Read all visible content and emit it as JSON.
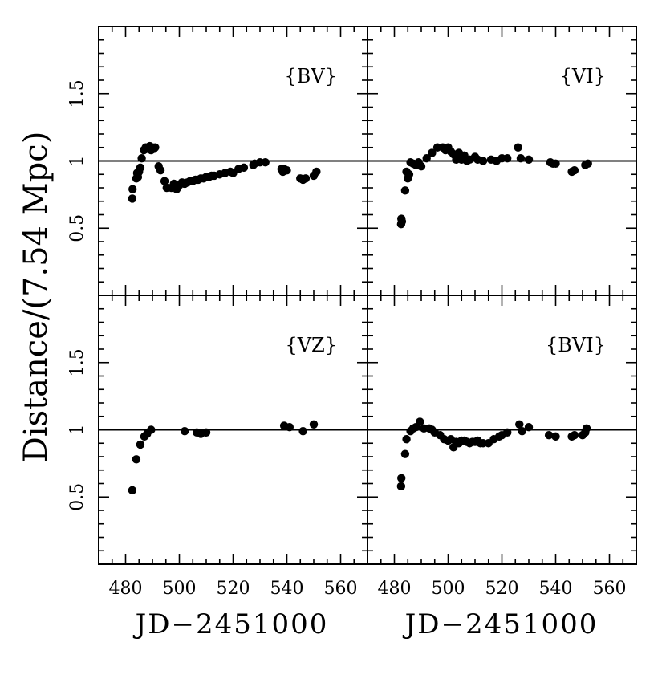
{
  "figure": {
    "ylabel": "Distance/(7.54 Mpc)",
    "xlabel": "JD−2451000"
  },
  "chart_data": [
    {
      "type": "scatter",
      "label": "{BV}",
      "xlim": [
        470,
        570
      ],
      "ylim": [
        0,
        2
      ],
      "xticks": [
        "480",
        "500",
        "520",
        "540",
        "560"
      ],
      "yticks": [
        "0.5",
        "1",
        "1.5"
      ],
      "reference_line": 1,
      "x": [
        482.5,
        482.6,
        484,
        484.3,
        484.6,
        485,
        485.5,
        486,
        486.8,
        487.5,
        488,
        488.5,
        489,
        489.5,
        490,
        490.5,
        491,
        492.3,
        493,
        494.5,
        495.3,
        497,
        498,
        499,
        500,
        501,
        502,
        503,
        504,
        505,
        506,
        507,
        508,
        509,
        510,
        511,
        512,
        513,
        515,
        517,
        519,
        520,
        522,
        524,
        527.5,
        528,
        530,
        532,
        538,
        538.5,
        539,
        540,
        545,
        546,
        547,
        550,
        551
      ],
      "y": [
        0.72,
        0.79,
        0.87,
        0.91,
        0.88,
        0.92,
        0.95,
        1.02,
        1.08,
        1.1,
        1.09,
        1.1,
        1.11,
        1.08,
        1.1,
        1.09,
        1.1,
        0.96,
        0.93,
        0.85,
        0.8,
        0.8,
        0.83,
        0.79,
        0.82,
        0.84,
        0.83,
        0.84,
        0.85,
        0.85,
        0.86,
        0.86,
        0.87,
        0.87,
        0.88,
        0.88,
        0.89,
        0.89,
        0.9,
        0.91,
        0.92,
        0.91,
        0.94,
        0.95,
        0.97,
        0.98,
        0.99,
        0.99,
        0.94,
        0.92,
        0.94,
        0.93,
        0.87,
        0.86,
        0.87,
        0.89,
        0.92
      ]
    },
    {
      "type": "scatter",
      "label": "{VI}",
      "xlim": [
        470,
        570
      ],
      "ylim": [
        0,
        2
      ],
      "xticks": [
        "480",
        "500",
        "520",
        "540",
        "560"
      ],
      "yticks": [
        "0.5",
        "1",
        "1.5"
      ],
      "reference_line": 1,
      "x": [
        482.5,
        482.6,
        482.8,
        484,
        484.5,
        485,
        485.5,
        486,
        487,
        488,
        489,
        490,
        492,
        494,
        496,
        498,
        499,
        500,
        501,
        502,
        503,
        504,
        505,
        506,
        507,
        508,
        510,
        511,
        513,
        516,
        518,
        520,
        522,
        526,
        527,
        530,
        538,
        539,
        540,
        546,
        547,
        551,
        552
      ],
      "y": [
        0.53,
        0.57,
        0.55,
        0.78,
        0.92,
        0.87,
        0.9,
        0.99,
        0.98,
        0.97,
        0.99,
        0.96,
        1.02,
        1.06,
        1.1,
        1.1,
        1.08,
        1.1,
        1.07,
        1.05,
        1.01,
        1.06,
        1.01,
        1.04,
        1.0,
        1.01,
        1.03,
        1.01,
        1.0,
        1.01,
        1.0,
        1.02,
        1.02,
        1.1,
        1.02,
        1.01,
        0.99,
        0.98,
        0.98,
        0.92,
        0.93,
        0.97,
        0.98
      ]
    },
    {
      "type": "scatter",
      "label": "{VZ}",
      "xlim": [
        470,
        570
      ],
      "ylim": [
        0,
        2
      ],
      "xticks": [
        "480",
        "500",
        "520",
        "540",
        "560"
      ],
      "yticks": [
        "0.5",
        "1",
        "1.5"
      ],
      "reference_line": 1,
      "x": [
        482.5,
        484,
        485.5,
        487,
        488,
        489.5,
        502,
        506.5,
        508,
        510,
        539,
        541,
        546,
        550
      ],
      "y": [
        0.55,
        0.78,
        0.89,
        0.95,
        0.97,
        1.0,
        0.99,
        0.98,
        0.97,
        0.98,
        1.03,
        1.02,
        0.99,
        1.04
      ]
    },
    {
      "type": "scatter",
      "label": "{BVI}",
      "xlim": [
        470,
        570
      ],
      "ylim": [
        0,
        2
      ],
      "xticks": [
        "480",
        "500",
        "520",
        "540",
        "560"
      ],
      "yticks": [
        "0.5",
        "1",
        "1.5"
      ],
      "reference_line": 1,
      "x": [
        482.5,
        482.6,
        484,
        484.5,
        486,
        487,
        488,
        489.5,
        491,
        493,
        494,
        495,
        497,
        498.5,
        500,
        501,
        502,
        503,
        504,
        505,
        506,
        507,
        508,
        509,
        510,
        511,
        512,
        513,
        515,
        517,
        519,
        520,
        522,
        526.5,
        527.5,
        530,
        537.5,
        540,
        546,
        547,
        550,
        551,
        551.5
      ],
      "y": [
        0.58,
        0.64,
        0.82,
        0.93,
        0.99,
        1.01,
        1.02,
        1.06,
        1.01,
        1.01,
        1.0,
        0.98,
        0.96,
        0.93,
        0.92,
        0.93,
        0.87,
        0.91,
        0.9,
        0.92,
        0.92,
        0.91,
        0.9,
        0.91,
        0.91,
        0.92,
        0.9,
        0.9,
        0.9,
        0.93,
        0.95,
        0.96,
        0.98,
        1.04,
        0.99,
        1.02,
        0.96,
        0.95,
        0.95,
        0.96,
        0.96,
        0.98,
        1.01
      ]
    }
  ]
}
